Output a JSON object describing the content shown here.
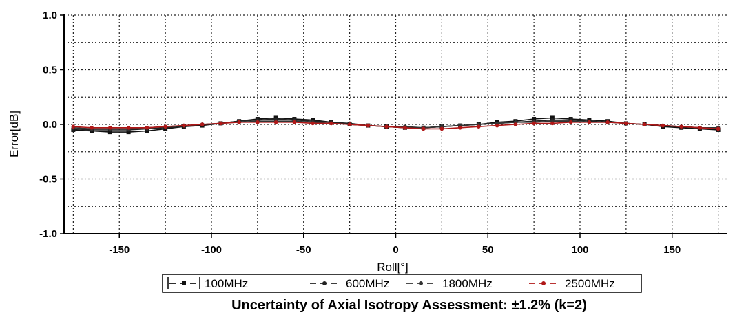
{
  "chart_data": {
    "type": "line",
    "title": "",
    "xlabel": "Roll[°]",
    "ylabel": "Error[dB]",
    "xlim": [
      -180,
      180
    ],
    "ylim": [
      -1.0,
      1.0
    ],
    "x_ticks": [
      -150,
      -100,
      -50,
      0,
      50,
      100,
      150
    ],
    "x_tick_labels": [
      "-150",
      "-100",
      "-50",
      "0",
      "50",
      "100",
      "150"
    ],
    "y_ticks": [
      -1.0,
      -0.5,
      0.0,
      0.5,
      1.0
    ],
    "y_tick_labels": [
      "-1.0",
      "-0.5",
      "0.0",
      "0.5",
      "1.0"
    ],
    "grid": "dotted, every 25° in x and 0.25 dB in y",
    "legend_placement": "below plot",
    "x": [
      -175,
      -165,
      -155,
      -145,
      -135,
      -125,
      -115,
      -105,
      -95,
      -85,
      -75,
      -65,
      -55,
      -45,
      -35,
      -25,
      -15,
      -5,
      5,
      15,
      25,
      35,
      45,
      55,
      65,
      75,
      85,
      95,
      105,
      115,
      125,
      135,
      145,
      155,
      165,
      175
    ],
    "series": [
      {
        "name": "100MHz",
        "color": "#111111",
        "marker": "square",
        "values": [
          -0.05,
          -0.06,
          -0.07,
          -0.07,
          -0.06,
          -0.04,
          -0.02,
          -0.01,
          0.01,
          0.03,
          0.05,
          0.06,
          0.05,
          0.04,
          0.02,
          0.0,
          -0.01,
          -0.02,
          -0.03,
          -0.03,
          -0.02,
          -0.01,
          0.0,
          0.02,
          0.03,
          0.05,
          0.06,
          0.05,
          0.04,
          0.03,
          0.01,
          0.0,
          -0.02,
          -0.03,
          -0.04,
          -0.05
        ]
      },
      {
        "name": "600MHz",
        "color": "#222222",
        "marker": "dot",
        "values": [
          -0.04,
          -0.05,
          -0.05,
          -0.05,
          -0.04,
          -0.03,
          -0.02,
          0.0,
          0.01,
          0.03,
          0.04,
          0.05,
          0.04,
          0.03,
          0.02,
          0.01,
          -0.01,
          -0.02,
          -0.03,
          -0.03,
          -0.02,
          -0.01,
          0.0,
          0.01,
          0.02,
          0.03,
          0.04,
          0.04,
          0.03,
          0.02,
          0.01,
          0.0,
          -0.01,
          -0.02,
          -0.03,
          -0.04
        ]
      },
      {
        "name": "1800MHz",
        "color": "#333333",
        "marker": "dot",
        "values": [
          -0.03,
          -0.04,
          -0.04,
          -0.04,
          -0.03,
          -0.02,
          -0.01,
          0.0,
          0.01,
          0.02,
          0.03,
          0.03,
          0.03,
          0.02,
          0.01,
          0.0,
          -0.01,
          -0.02,
          -0.02,
          -0.03,
          -0.02,
          -0.01,
          0.0,
          0.01,
          0.02,
          0.02,
          0.03,
          0.03,
          0.02,
          0.02,
          0.01,
          0.0,
          -0.01,
          -0.02,
          -0.03,
          -0.03
        ]
      },
      {
        "name": "2500MHz",
        "color": "#b01818",
        "marker": "dot",
        "values": [
          -0.02,
          -0.03,
          -0.03,
          -0.03,
          -0.03,
          -0.02,
          -0.01,
          0.0,
          0.01,
          0.02,
          0.02,
          0.02,
          0.02,
          0.01,
          0.01,
          0.0,
          -0.01,
          -0.02,
          -0.03,
          -0.04,
          -0.04,
          -0.03,
          -0.02,
          -0.01,
          0.0,
          0.01,
          0.01,
          0.02,
          0.02,
          0.02,
          0.01,
          0.0,
          -0.01,
          -0.02,
          -0.03,
          -0.04
        ]
      }
    ]
  },
  "caption": "Uncertainty of Axial Isotropy Assessment: ±1.2% (k=2)"
}
